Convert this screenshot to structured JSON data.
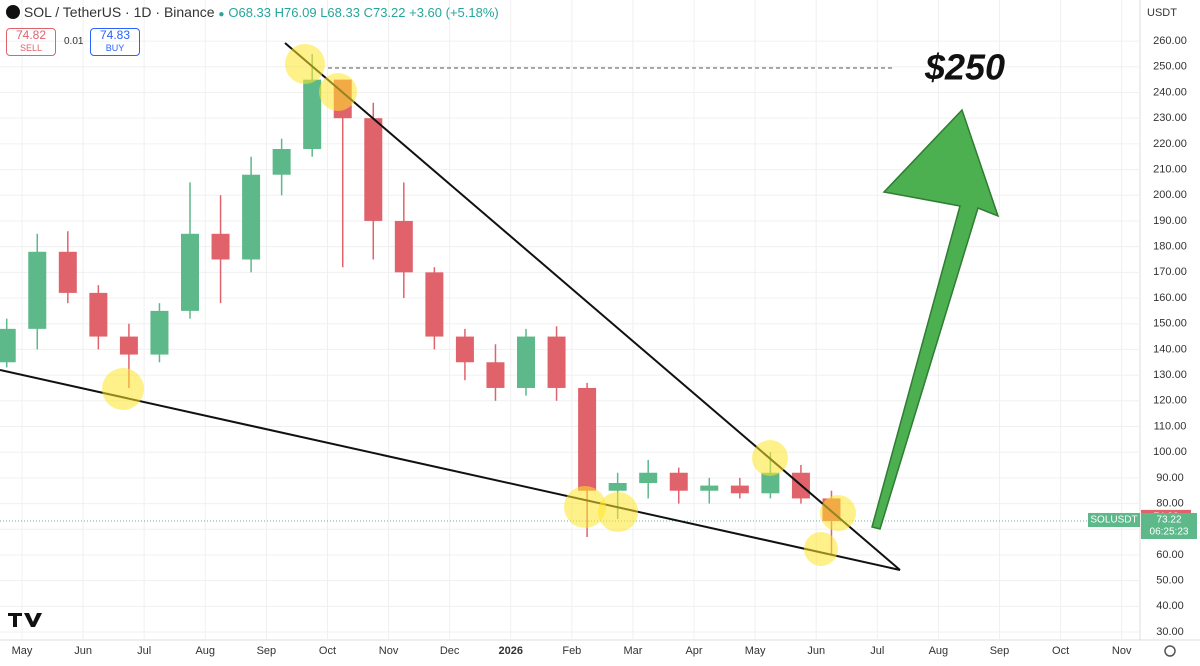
{
  "header": {
    "symbol": "SOL / TetherUS · 1D · Binance",
    "ohlc": [
      "O68.33",
      "H76.09",
      "L68.33",
      "C73.22"
    ],
    "change": "+3.60 (+5.18%)",
    "sell": {
      "price": "74.82",
      "label": "SELL"
    },
    "spread": "0.01",
    "buy": {
      "price": "74.83",
      "label": "BUY"
    }
  },
  "chart_data": {
    "type": "candlestick",
    "currency": "USDT",
    "annotation": "$250",
    "up_color": "#5db88a",
    "down_color": "#e0636c",
    "xlim": [
      -0.36,
      18.3
    ],
    "ylim": [
      26.9,
      276
    ],
    "xticks": [
      {
        "value": 0,
        "label": "May"
      },
      {
        "value": 1,
        "label": "Jun"
      },
      {
        "value": 2,
        "label": "Jul"
      },
      {
        "value": 3,
        "label": "Aug"
      },
      {
        "value": 4,
        "label": "Sep"
      },
      {
        "value": 5,
        "label": "Oct"
      },
      {
        "value": 6,
        "label": "Nov"
      },
      {
        "value": 7,
        "label": "Dec"
      },
      {
        "value": 8,
        "label": "2026"
      },
      {
        "value": 9,
        "label": "Feb"
      },
      {
        "value": 10,
        "label": "Mar"
      },
      {
        "value": 11,
        "label": "Apr"
      },
      {
        "value": 12,
        "label": "May"
      },
      {
        "value": 13,
        "label": "Jun"
      },
      {
        "value": 14,
        "label": "Jul"
      },
      {
        "value": 15,
        "label": "Aug"
      },
      {
        "value": 16,
        "label": "Sep"
      },
      {
        "value": 17,
        "label": "Oct"
      },
      {
        "value": 18,
        "label": "Nov"
      }
    ],
    "yticks": [
      {
        "value": 30,
        "label": "30.00"
      },
      {
        "value": 40,
        "label": "40.00"
      },
      {
        "value": 50,
        "label": "50.00"
      },
      {
        "value": 60,
        "label": "60.00"
      },
      {
        "value": 70,
        "label": "70.00"
      },
      {
        "value": 80,
        "label": "80.00"
      },
      {
        "value": 90,
        "label": "90.00"
      },
      {
        "value": 100,
        "label": "100.00"
      },
      {
        "value": 110,
        "label": "110.00"
      },
      {
        "value": 120,
        "label": "120.00"
      },
      {
        "value": 130,
        "label": "130.00"
      },
      {
        "value": 140,
        "label": "140.00"
      },
      {
        "value": 150,
        "label": "150.00"
      },
      {
        "value": 160,
        "label": "160.00"
      },
      {
        "value": 170,
        "label": "170.00"
      },
      {
        "value": 180,
        "label": "180.00"
      },
      {
        "value": 190,
        "label": "190.00"
      },
      {
        "value": 200,
        "label": "200.00"
      },
      {
        "value": 210,
        "label": "210.00"
      },
      {
        "value": 220,
        "label": "220.00"
      },
      {
        "value": 230,
        "label": "230.00"
      },
      {
        "value": 240,
        "label": "240.00"
      },
      {
        "value": 250,
        "label": "250.00"
      },
      {
        "value": 260,
        "label": "260.00"
      }
    ],
    "x": [
      -0.25,
      0.25,
      0.75,
      1.25,
      1.75,
      2.25,
      2.75,
      3.25,
      3.75,
      4.25,
      4.75,
      5.25,
      5.75,
      6.25,
      6.75,
      7.25,
      7.75,
      8.25,
      8.75,
      9.25,
      9.75,
      10.25,
      10.75,
      11.25,
      11.75,
      12.25,
      12.75,
      13.25
    ],
    "open": [
      135,
      148,
      178,
      162,
      145,
      138,
      155,
      185,
      175,
      208,
      218,
      245,
      230,
      190,
      170,
      145,
      135,
      125,
      145,
      125,
      85,
      88,
      92,
      85,
      87,
      84,
      92,
      82
    ],
    "high": [
      152,
      185,
      186,
      165,
      150,
      158,
      205,
      200,
      215,
      222,
      255,
      245,
      236,
      205,
      172,
      148,
      142,
      148,
      149,
      127,
      92,
      97,
      94,
      90,
      90,
      100,
      95,
      85
    ],
    "low": [
      133,
      140,
      158,
      140,
      125,
      135,
      152,
      158,
      170,
      200,
      215,
      172,
      175,
      160,
      140,
      128,
      120,
      122,
      120,
      67,
      74,
      82,
      80,
      80,
      82,
      82,
      80,
      60
    ],
    "close": [
      148,
      178,
      162,
      145,
      138,
      155,
      185,
      175,
      208,
      218,
      245,
      230,
      190,
      170,
      145,
      135,
      125,
      145,
      125,
      85,
      88,
      92,
      85,
      87,
      84,
      92,
      82,
      73.22
    ],
    "price_labels": {
      "ask": 74.82,
      "symbol": "SOLUSDT",
      "last": 73.22,
      "countdown": "06:25:23"
    }
  }
}
